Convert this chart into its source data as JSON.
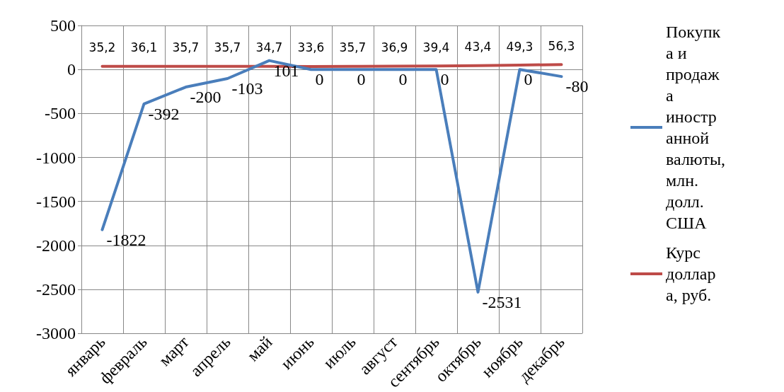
{
  "chart_data": {
    "type": "line",
    "categories": [
      "январь",
      "февраль",
      "март",
      "апрель",
      "май",
      "июнь",
      "июль",
      "август",
      "сентябрь",
      "октябрь",
      "ноябрь",
      "декабрь"
    ],
    "series": [
      {
        "name": "Покупка и продажа иностранной валюты, млн. долл. США",
        "color": "#4a7ebb",
        "values": [
          -1822,
          -392,
          -200,
          -103,
          101,
          0,
          0,
          0,
          0,
          -2531,
          0,
          -80
        ],
        "value_labels": [
          "-1822",
          "-392",
          "-200",
          "-103",
          "101",
          "0",
          "0",
          "0",
          "0",
          "-2531",
          "0",
          "-80"
        ]
      },
      {
        "name": "Курс доллара, руб.",
        "color": "#be4b48",
        "values": [
          35.2,
          36.1,
          35.7,
          35.7,
          34.7,
          33.6,
          35.7,
          36.9,
          39.4,
          43.4,
          49.3,
          56.3
        ],
        "value_labels": [
          "35,2",
          "36,1",
          "35,7",
          "35,7",
          "34,7",
          "33,6",
          "35,7",
          "36,9",
          "39,4",
          "43,4",
          "49,3",
          "56,3"
        ]
      }
    ],
    "ylim": [
      -3000,
      500
    ],
    "yticks": [
      -3000,
      -2500,
      -2000,
      -1500,
      -1000,
      -500,
      0,
      500
    ],
    "grid": true,
    "legend": "right",
    "marker": "none",
    "line_style": "solid"
  }
}
